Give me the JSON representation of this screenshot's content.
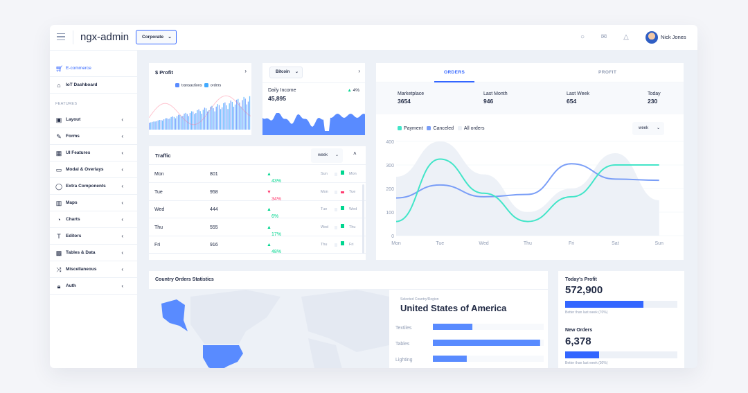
{
  "header": {
    "brand": "ngx-admin",
    "theme_select": "Corporate",
    "user_name": "Nick Jones"
  },
  "sidebar": {
    "items_top": [
      {
        "label": "E-commerce",
        "icon": "shopping-cart-icon",
        "active": true
      },
      {
        "label": "IoT Dashboard",
        "icon": "home-icon"
      }
    ],
    "section_label": "FEATURES",
    "items": [
      {
        "label": "Layout",
        "icon": "layout-icon"
      },
      {
        "label": "Forms",
        "icon": "edit-icon"
      },
      {
        "label": "UI Features",
        "icon": "keypad-icon"
      },
      {
        "label": "Modal & Overlays",
        "icon": "browser-icon"
      },
      {
        "label": "Extra Components",
        "icon": "message-circle-icon"
      },
      {
        "label": "Maps",
        "icon": "map-icon"
      },
      {
        "label": "Charts",
        "icon": "pie-chart-icon"
      },
      {
        "label": "Editors",
        "icon": "text-icon"
      },
      {
        "label": "Tables & Data",
        "icon": "grid-icon"
      },
      {
        "label": "Miscellaneous",
        "icon": "shuffle-icon"
      },
      {
        "label": "Auth",
        "icon": "lock-icon"
      }
    ]
  },
  "profit_card": {
    "title": "$ Profit",
    "legend": [
      "transactions",
      "orders"
    ],
    "colors": {
      "transactions": "#598bff",
      "orders": "#42aaff"
    }
  },
  "income_card": {
    "select": "Bitcoin",
    "label": "Daily Income",
    "value": "45,895",
    "delta": "4%"
  },
  "traffic_card": {
    "title": "Traffic",
    "period": "week",
    "rows": [
      {
        "day": "Mon",
        "value": "801",
        "delta": "43%",
        "dir": "up",
        "prev": "Sun",
        "cur": "Mon"
      },
      {
        "day": "Tue",
        "value": "958",
        "delta": "34%",
        "dir": "down",
        "prev": "Mon",
        "cur": "Tue"
      },
      {
        "day": "Wed",
        "value": "444",
        "delta": "6%",
        "dir": "up",
        "prev": "Tue",
        "cur": "Wed"
      },
      {
        "day": "Thu",
        "value": "555",
        "delta": "17%",
        "dir": "up",
        "prev": "Wed",
        "cur": "Thu"
      },
      {
        "day": "Fri",
        "value": "916",
        "delta": "48%",
        "dir": "up",
        "prev": "Thu",
        "cur": "Fri"
      }
    ]
  },
  "orders_card": {
    "tabs": [
      "ORDERS",
      "PROFIT"
    ],
    "stats": [
      {
        "label": "Marketplace",
        "value": "3654"
      },
      {
        "label": "Last Month",
        "value": "946"
      },
      {
        "label": "Last Week",
        "value": "654"
      },
      {
        "label": "Today",
        "value": "230"
      }
    ],
    "legend": [
      "Payment",
      "Canceled",
      "All orders"
    ],
    "period": "week"
  },
  "chart_data": {
    "type": "line",
    "x": [
      "Mon",
      "Tue",
      "Wed",
      "Thu",
      "Fri",
      "Sat",
      "Sun"
    ],
    "ylim": [
      0,
      400
    ],
    "yticks": [
      0,
      100,
      200,
      300,
      400
    ],
    "series": [
      {
        "name": "Payment",
        "color": "#42e5c8",
        "values": [
          60,
          325,
          180,
          60,
          165,
          300,
          300
        ]
      },
      {
        "name": "Canceled",
        "color": "#7a9ef7",
        "values": [
          160,
          215,
          165,
          175,
          305,
          240,
          235
        ]
      },
      {
        "name": "All orders",
        "color": "#edf1f7",
        "values": [
          250,
          400,
          260,
          100,
          200,
          350,
          150
        ]
      }
    ]
  },
  "country_card": {
    "title": "Country Orders Statistics",
    "selected_label": "Selected Country/Region",
    "country": "United States of America",
    "bars": [
      {
        "label": "Textiles",
        "value": 0.35
      },
      {
        "label": "Tables",
        "value": 0.95
      },
      {
        "label": "Lighting",
        "value": 0.3
      }
    ]
  },
  "summary_card": {
    "items": [
      {
        "title": "Today's Profit",
        "value": "572,900",
        "progress": 0.7,
        "note": "Better than last week (70%)"
      },
      {
        "title": "New Orders",
        "value": "6,378",
        "progress": 0.3,
        "note": "Better than last week (30%)"
      }
    ]
  }
}
